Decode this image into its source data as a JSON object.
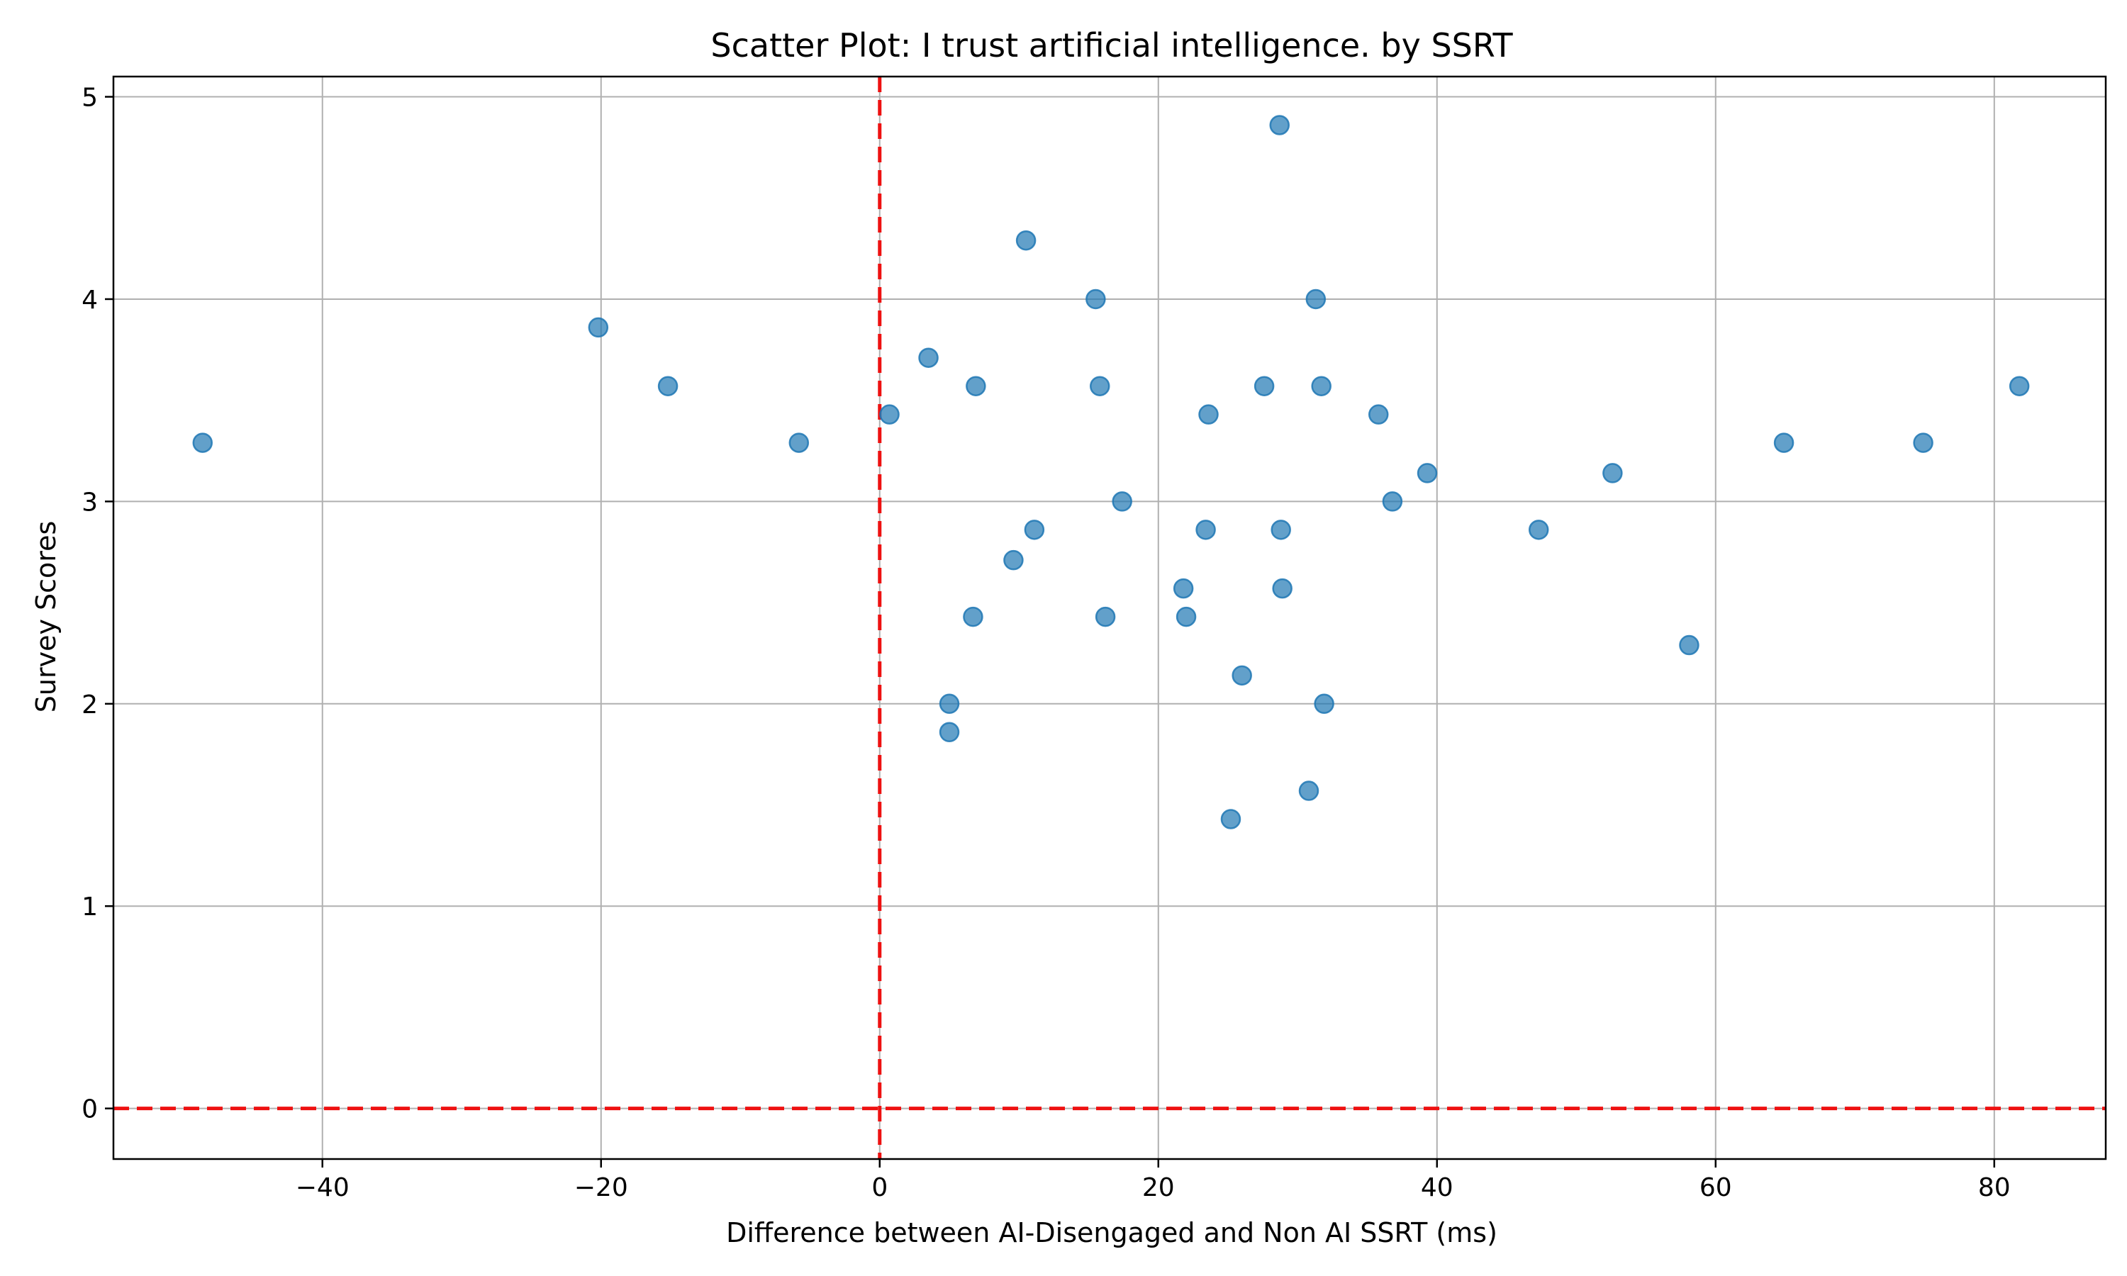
{
  "chart_data": {
    "type": "scatter",
    "title": "Scatter Plot: I trust artificial intelligence. by SSRT",
    "xlabel": "Difference between AI-Disengaged and Non AI SSRT (ms)",
    "ylabel": "Survey Scores",
    "xlim": [
      -55,
      88
    ],
    "ylim": [
      -0.25,
      5.1
    ],
    "x_ticks": [
      -40,
      -20,
      0,
      20,
      40,
      60,
      80
    ],
    "x_tick_labels": [
      "−40",
      "−20",
      "0",
      "20",
      "40",
      "60",
      "80"
    ],
    "y_ticks": [
      0,
      1,
      2,
      3,
      4,
      5
    ],
    "y_tick_labels": [
      "0",
      "1",
      "2",
      "3",
      "4",
      "5"
    ],
    "grid": true,
    "reference_lines": {
      "vertical_x": 0,
      "horizontal_y": 0,
      "color": "#ee1111",
      "style": "dashed"
    },
    "marker_color": "#1f77b4",
    "marker_opacity": 0.7,
    "points": [
      {
        "x": -48.6,
        "y": 3.29
      },
      {
        "x": -20.2,
        "y": 3.86
      },
      {
        "x": -15.2,
        "y": 3.57
      },
      {
        "x": -5.8,
        "y": 3.29
      },
      {
        "x": 0.7,
        "y": 3.43
      },
      {
        "x": 3.5,
        "y": 3.71
      },
      {
        "x": 5.0,
        "y": 2.0
      },
      {
        "x": 5.0,
        "y": 1.86
      },
      {
        "x": 6.7,
        "y": 2.43
      },
      {
        "x": 6.9,
        "y": 3.57
      },
      {
        "x": 9.6,
        "y": 2.71
      },
      {
        "x": 10.5,
        "y": 4.29
      },
      {
        "x": 11.1,
        "y": 2.86
      },
      {
        "x": 15.5,
        "y": 4.0
      },
      {
        "x": 15.8,
        "y": 3.57
      },
      {
        "x": 16.2,
        "y": 2.43
      },
      {
        "x": 17.4,
        "y": 3.0
      },
      {
        "x": 21.8,
        "y": 2.57
      },
      {
        "x": 22.0,
        "y": 2.43
      },
      {
        "x": 23.4,
        "y": 2.86
      },
      {
        "x": 23.6,
        "y": 3.43
      },
      {
        "x": 25.2,
        "y": 1.43
      },
      {
        "x": 26.0,
        "y": 2.14
      },
      {
        "x": 27.6,
        "y": 3.57
      },
      {
        "x": 28.7,
        "y": 4.86
      },
      {
        "x": 28.8,
        "y": 2.86
      },
      {
        "x": 28.9,
        "y": 2.57
      },
      {
        "x": 30.8,
        "y": 1.57
      },
      {
        "x": 31.3,
        "y": 4.0
      },
      {
        "x": 31.7,
        "y": 3.57
      },
      {
        "x": 31.9,
        "y": 2.0
      },
      {
        "x": 35.8,
        "y": 3.43
      },
      {
        "x": 36.8,
        "y": 3.0
      },
      {
        "x": 39.3,
        "y": 3.14
      },
      {
        "x": 47.3,
        "y": 2.86
      },
      {
        "x": 52.6,
        "y": 3.14
      },
      {
        "x": 58.1,
        "y": 2.29
      },
      {
        "x": 64.9,
        "y": 3.29
      },
      {
        "x": 74.9,
        "y": 3.29
      },
      {
        "x": 81.8,
        "y": 3.57
      }
    ]
  }
}
